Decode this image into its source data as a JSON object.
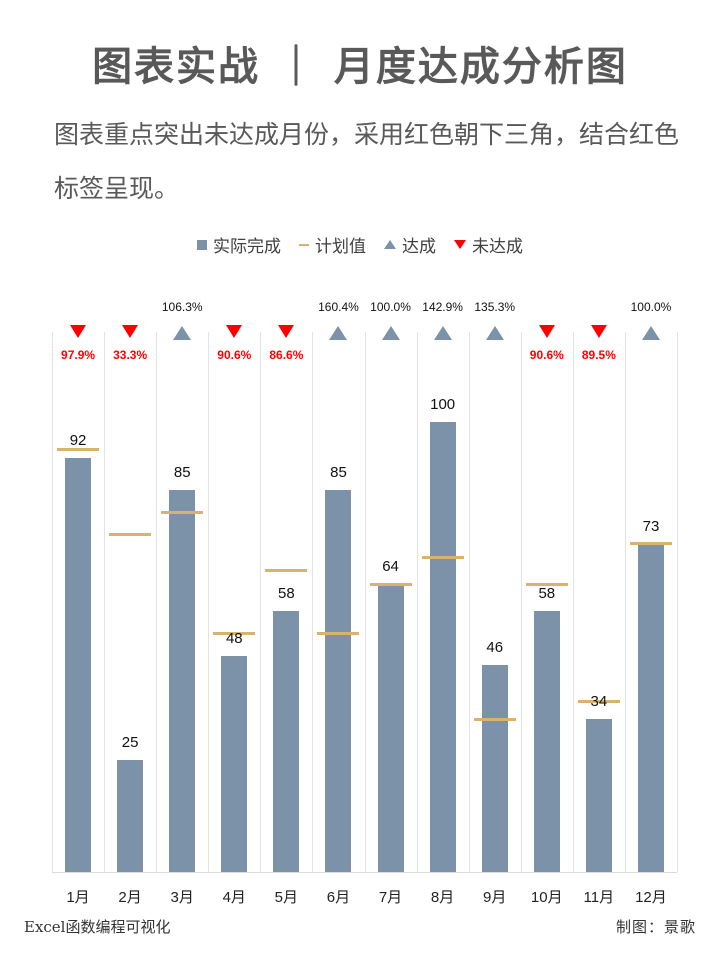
{
  "header": {
    "title": "图表实战 ｜ 月度达成分析图",
    "subtitle": "图表重点突出未达成月份，采用红色朝下三角，结合红色标签呈现。"
  },
  "legend": {
    "actual": "实际完成",
    "target": "计划值",
    "hit": "达成",
    "miss": "未达成"
  },
  "colors": {
    "bar": "#7b92a8",
    "target_line": "#d9b36e",
    "hit_marker": "#7b92a8",
    "miss_marker": "#ff0000",
    "text": "#595959"
  },
  "footer": {
    "left": "Excel函数编程可视化",
    "right": "制图：景歌"
  },
  "chart_data": {
    "type": "bar",
    "title": "月度达成分析图",
    "xlabel": "",
    "ylabel": "",
    "ylim": [
      0,
      120
    ],
    "grid": "vertical category separators",
    "legend_position": "top",
    "categories": [
      "1月",
      "2月",
      "3月",
      "4月",
      "5月",
      "6月",
      "7月",
      "8月",
      "9月",
      "10月",
      "11月",
      "12月"
    ],
    "series": [
      {
        "name": "实际完成",
        "type": "bar",
        "values": [
          92,
          25,
          85,
          48,
          58,
          85,
          64,
          100,
          46,
          58,
          34,
          73
        ]
      },
      {
        "name": "计划值",
        "type": "marker-line",
        "values": [
          94,
          75,
          80,
          53,
          67,
          53,
          64,
          70,
          34,
          64,
          38,
          73
        ]
      }
    ],
    "achievement_rate": [
      "97.9%",
      "33.3%",
      "106.3%",
      "90.6%",
      "86.6%",
      "160.4%",
      "100.0%",
      "142.9%",
      "135.3%",
      "90.6%",
      "89.5%",
      "100.0%"
    ],
    "status": [
      "未达成",
      "未达成",
      "达成",
      "未达成",
      "未达成",
      "达成",
      "达成",
      "达成",
      "达成",
      "未达成",
      "未达成",
      "达成"
    ]
  }
}
